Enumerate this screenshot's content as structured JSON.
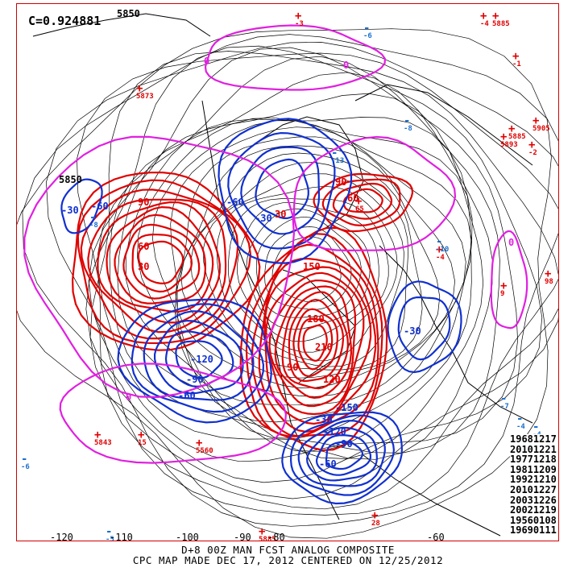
{
  "correlation_label": "C=0.924881",
  "caption": {
    "line1": "D+8 00Z MAN FCST ANALOG COMPOSITE",
    "line2": "CPC MAP MADE DEC 17, 2012 CENTERED ON 12/25/2012"
  },
  "longitude_labels": [
    "-120",
    "-110",
    "-100",
    "-90",
    "-80",
    "-60"
  ],
  "analog_dates": [
    "19681217",
    "20101221",
    "19771218",
    "19811209",
    "19921210",
    "20101227",
    "20031226",
    "20021219",
    "19560108",
    "19690111"
  ],
  "height_labels": [
    "5850",
    "5850"
  ],
  "contour_labels": {
    "red": [
      "90",
      "60",
      "30",
      "90",
      "60",
      "30",
      "150",
      "180",
      "210",
      "120",
      "90"
    ],
    "blue": [
      "-60",
      "-30",
      "-60",
      "-30",
      "-60",
      "-90",
      "-120",
      "-30",
      "-60",
      "-90",
      "-120",
      "-150",
      "-30"
    ],
    "magenta": [
      "0",
      "0",
      "0",
      "0"
    ]
  },
  "colors": {
    "positive_anomaly": "#e00000",
    "negative_anomaly": "#1030d0",
    "zero_contour": "#e020e0",
    "height_contour": "#000000",
    "frame": "#d00000"
  },
  "markers": {
    "highs": [
      "+",
      "+",
      "+",
      "+",
      "+",
      "+",
      "+",
      "+",
      "+",
      "+",
      "+",
      "+",
      "+",
      "+",
      "+",
      "+",
      "+",
      "+"
    ],
    "lows": [
      "-",
      "-",
      "-",
      "-",
      "-",
      "-",
      "-",
      "-",
      "-",
      "-"
    ],
    "high_values": [
      "5873",
      "5893",
      "65",
      "15",
      "5843",
      "5885",
      "5885",
      "28",
      "5905",
      "5885",
      "-4",
      "-2",
      "-1",
      "-4",
      "-3",
      "98",
      "9",
      "5560"
    ],
    "low_values": [
      "-6",
      "-4",
      "-6",
      "-5",
      "-8",
      "-13",
      "-4",
      "-10",
      "-8",
      "-7"
    ]
  }
}
